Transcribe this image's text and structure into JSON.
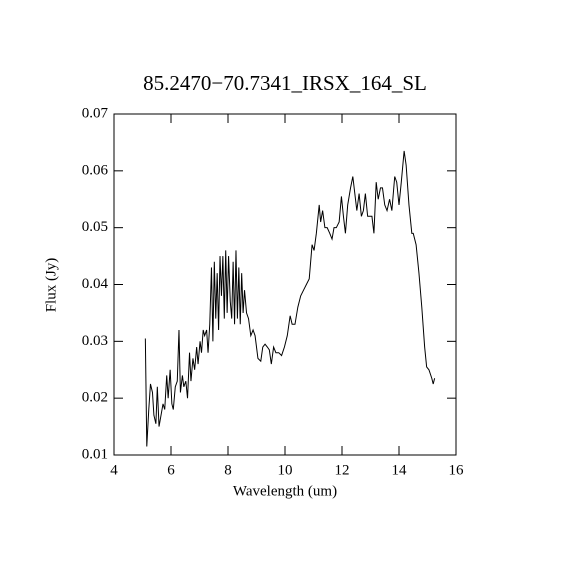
{
  "chart_data": {
    "type": "line",
    "title": "85.2470−70.7341_IRSX_164_SL",
    "x_label": "Wavelength (um)",
    "y_label": "Flux (Jy)",
    "color": "#000000",
    "xlim": [
      4,
      16
    ],
    "xticks": [
      4,
      6,
      8,
      10,
      12,
      14,
      16
    ],
    "ylim": [
      0.01,
      0.07
    ],
    "yticks": [
      0.01,
      0.02,
      0.03,
      0.04,
      0.05,
      0.06,
      0.07
    ],
    "x": [
      5.1,
      5.15,
      5.22,
      5.28,
      5.35,
      5.4,
      5.47,
      5.52,
      5.58,
      5.65,
      5.72,
      5.78,
      5.85,
      5.9,
      5.97,
      6.03,
      6.08,
      6.15,
      6.22,
      6.28,
      6.33,
      6.4,
      6.45,
      6.52,
      6.58,
      6.65,
      6.7,
      6.77,
      6.83,
      6.9,
      6.95,
      7.02,
      7.07,
      7.13,
      7.18,
      7.25,
      7.3,
      7.36,
      7.42,
      7.47,
      7.52,
      7.57,
      7.62,
      7.67,
      7.72,
      7.77,
      7.82,
      7.87,
      7.92,
      7.97,
      8.02,
      8.08,
      8.13,
      8.18,
      8.23,
      8.28,
      8.33,
      8.38,
      8.43,
      8.48,
      8.53,
      8.58,
      8.65,
      8.72,
      8.8,
      8.88,
      8.95,
      9.05,
      9.15,
      9.22,
      9.3,
      9.38,
      9.45,
      9.52,
      9.6,
      9.68,
      9.78,
      9.88,
      9.98,
      10.08,
      10.18,
      10.25,
      10.35,
      10.45,
      10.55,
      10.65,
      10.75,
      10.85,
      10.95,
      11.02,
      11.1,
      11.2,
      11.25,
      11.32,
      11.4,
      11.48,
      11.57,
      11.65,
      11.72,
      11.8,
      11.9,
      11.98,
      12.05,
      12.12,
      12.2,
      12.3,
      12.38,
      12.45,
      12.52,
      12.6,
      12.68,
      12.75,
      12.82,
      12.9,
      12.97,
      13.05,
      13.12,
      13.2,
      13.27,
      13.35,
      13.42,
      13.5,
      13.58,
      13.67,
      13.75,
      13.85,
      13.92,
      14.0,
      14.08,
      14.18,
      14.25,
      14.35,
      14.45,
      14.5,
      14.6,
      14.7,
      14.8,
      14.9,
      14.97,
      15.05,
      15.15,
      15.2,
      15.25
    ],
    "values": [
      0.0305,
      0.0115,
      0.018,
      0.0225,
      0.021,
      0.017,
      0.0155,
      0.022,
      0.015,
      0.017,
      0.019,
      0.018,
      0.024,
      0.02,
      0.025,
      0.019,
      0.018,
      0.022,
      0.023,
      0.032,
      0.021,
      0.024,
      0.022,
      0.023,
      0.02,
      0.028,
      0.023,
      0.027,
      0.025,
      0.029,
      0.026,
      0.03,
      0.028,
      0.032,
      0.031,
      0.032,
      0.028,
      0.033,
      0.043,
      0.03,
      0.044,
      0.034,
      0.042,
      0.032,
      0.045,
      0.038,
      0.045,
      0.034,
      0.046,
      0.035,
      0.045,
      0.037,
      0.034,
      0.044,
      0.033,
      0.046,
      0.034,
      0.043,
      0.033,
      0.042,
      0.035,
      0.039,
      0.035,
      0.034,
      0.031,
      0.032,
      0.031,
      0.027,
      0.0265,
      0.029,
      0.0295,
      0.029,
      0.0285,
      0.026,
      0.029,
      0.028,
      0.028,
      0.0275,
      0.029,
      0.031,
      0.0345,
      0.033,
      0.033,
      0.036,
      0.038,
      0.039,
      0.04,
      0.041,
      0.047,
      0.046,
      0.049,
      0.054,
      0.051,
      0.053,
      0.05,
      0.05,
      0.049,
      0.048,
      0.05,
      0.05,
      0.051,
      0.0555,
      0.052,
      0.049,
      0.054,
      0.057,
      0.059,
      0.056,
      0.053,
      0.056,
      0.052,
      0.053,
      0.056,
      0.052,
      0.052,
      0.052,
      0.049,
      0.058,
      0.055,
      0.057,
      0.057,
      0.054,
      0.053,
      0.055,
      0.053,
      0.059,
      0.058,
      0.054,
      0.058,
      0.0635,
      0.061,
      0.054,
      0.049,
      0.049,
      0.047,
      0.042,
      0.036,
      0.029,
      0.0255,
      0.025,
      0.0235,
      0.0225,
      0.0235
    ]
  }
}
